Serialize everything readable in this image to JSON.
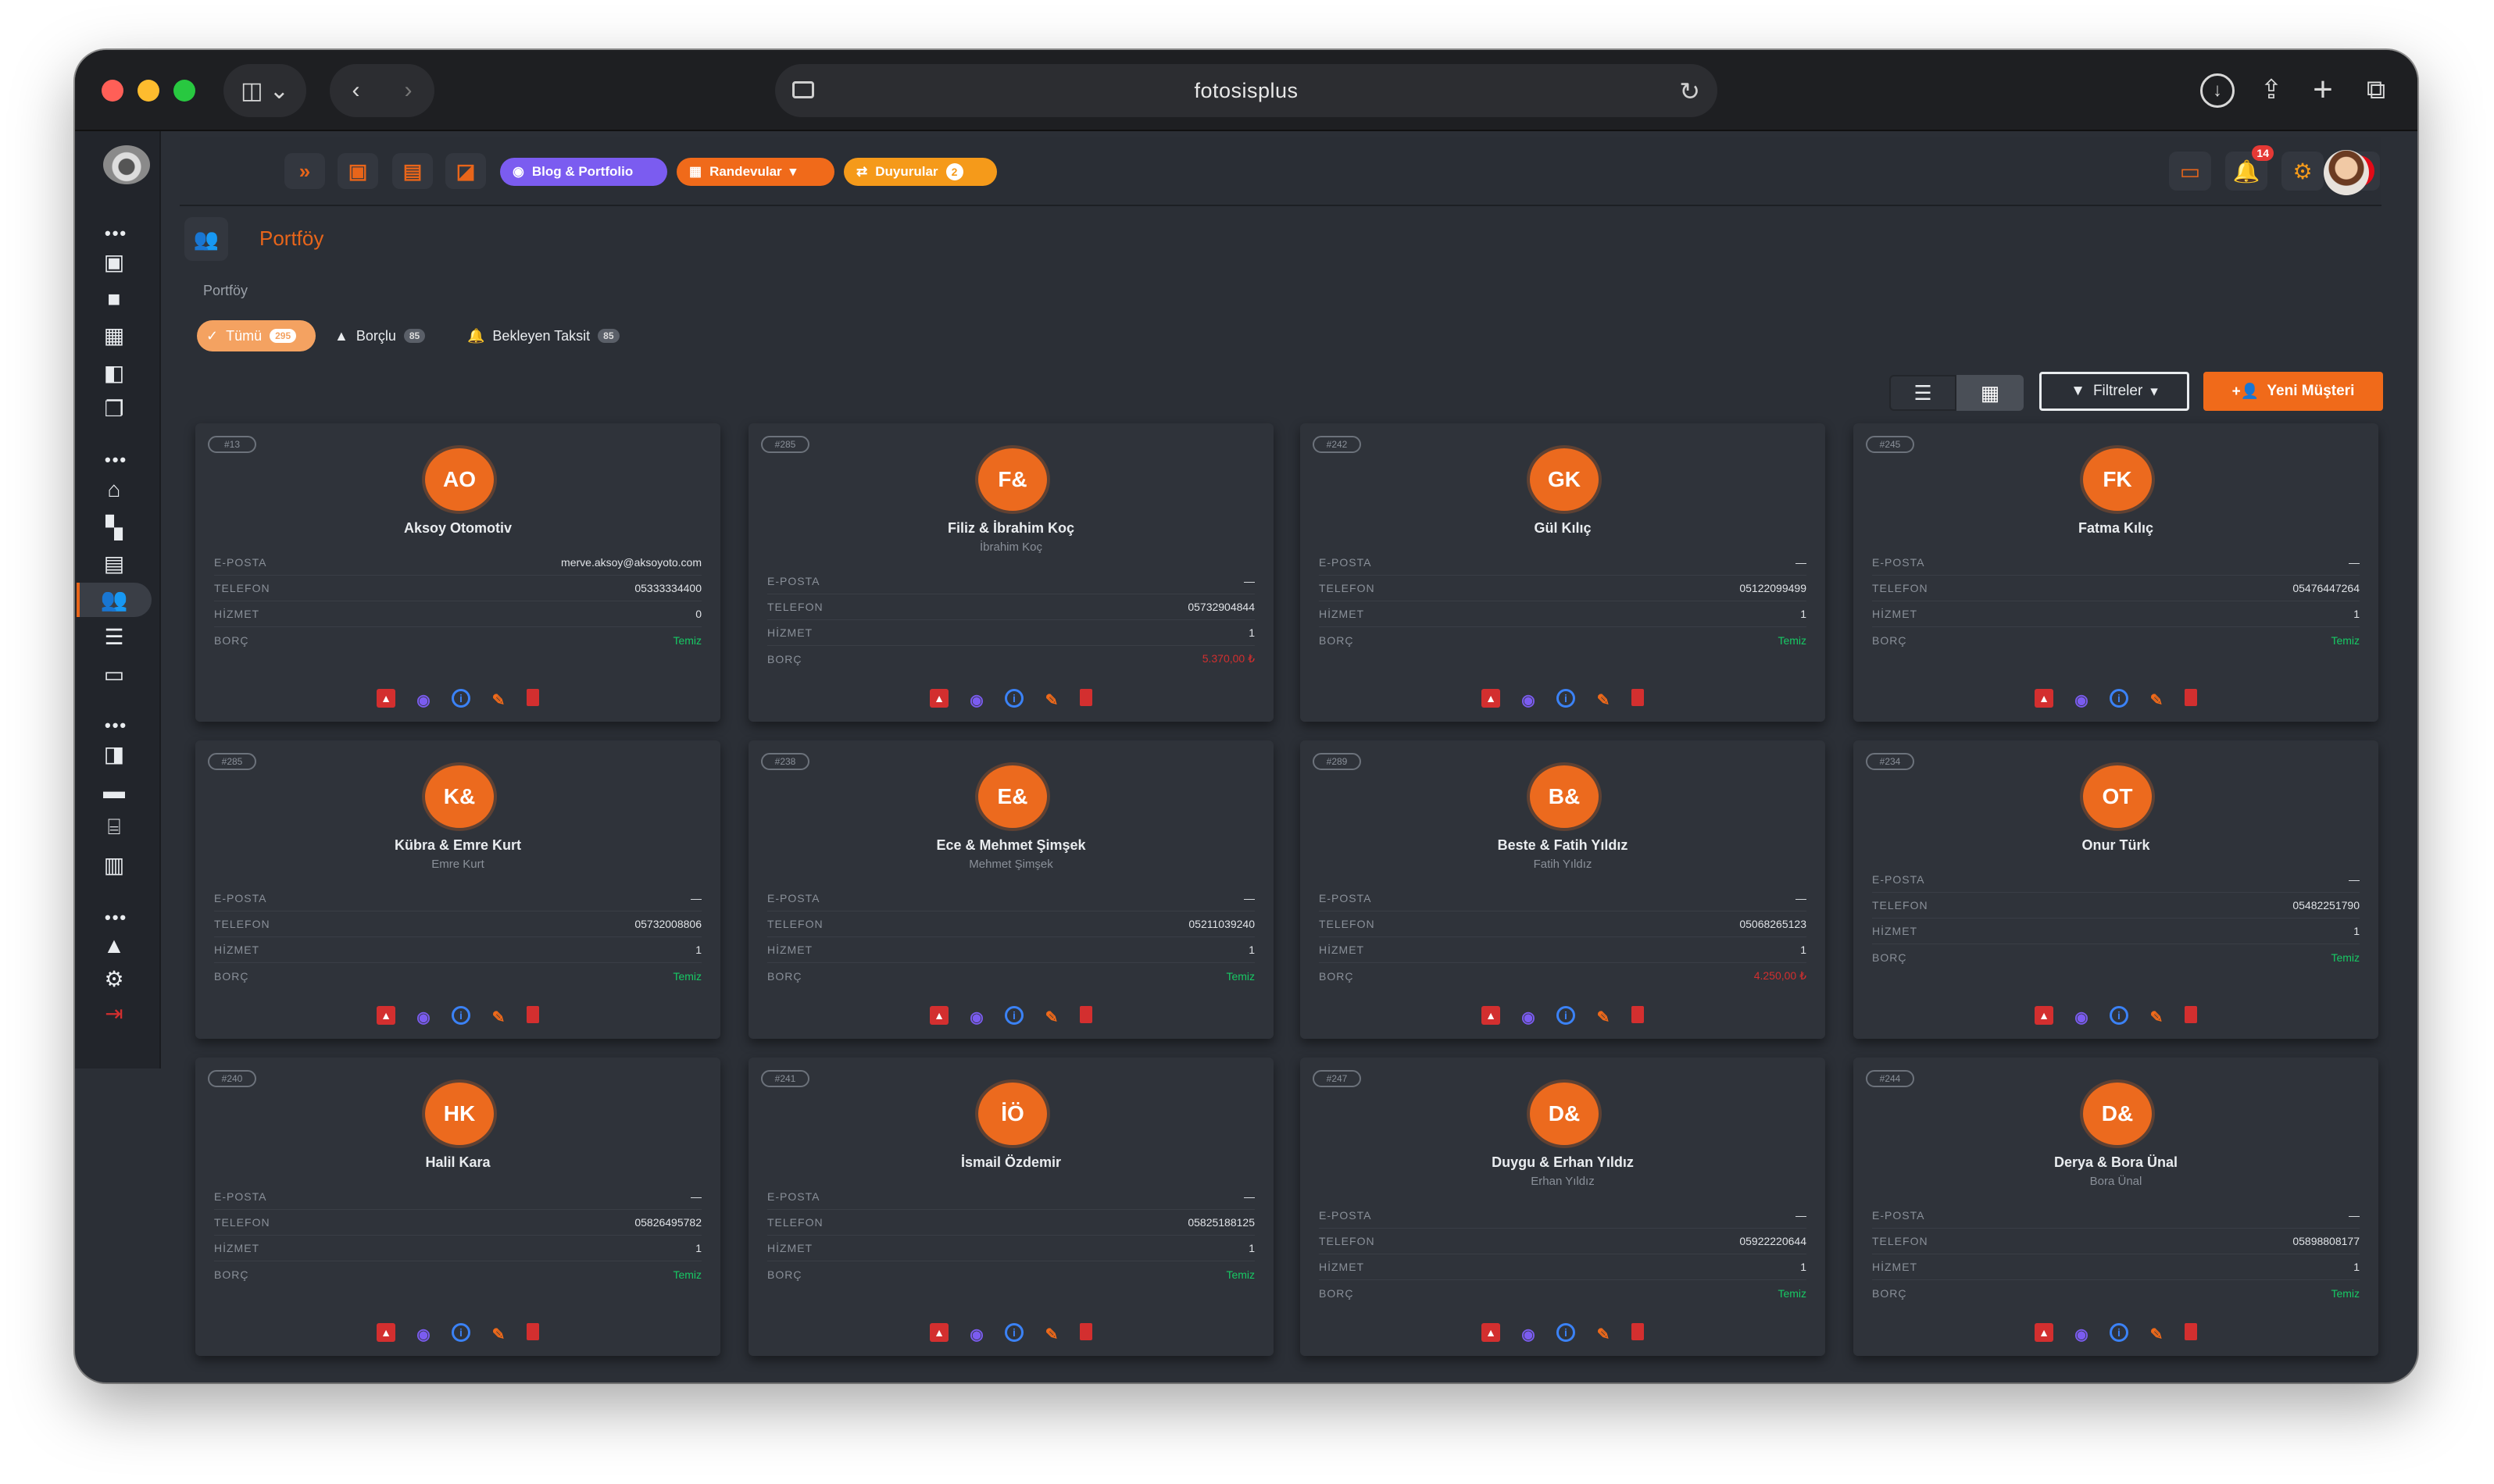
{
  "browser": {
    "url": "fotosisplus"
  },
  "appbar": {
    "blog_label": "Blog & Portfolio",
    "appointments_label": "Randevular",
    "announcements_label": "Duyurular",
    "announcements_count": "2",
    "notification_count": "14",
    "flag": "C*"
  },
  "page": {
    "title": "Portföy",
    "breadcrumb": "Portföy"
  },
  "filters": {
    "all_label": "Tümü",
    "all_count": "295",
    "borclu_label": "Borçlu",
    "borclu_count": "85",
    "bekleyen_label": "Bekleyen Taksit",
    "bekleyen_count": "85",
    "filters_button": "Filtreler",
    "new_customer_button": "Yeni Müşteri"
  },
  "labels": {
    "email": "E-POSTA",
    "phone": "TELEFON",
    "service": "HİZMET",
    "debt": "BORÇ"
  },
  "colors": {
    "accent": "#ec6a1e",
    "ok": "#17c964",
    "danger": "#d32f2f",
    "purple": "#7b5cf0"
  },
  "cards": [
    {
      "id": "#13",
      "initials": "AO",
      "name": "Aksoy Otomotiv",
      "sub": "",
      "email": "merve.aksoy@aksoyoto.com",
      "phone": "05333334400",
      "service": "0",
      "debt": "Temiz"
    },
    {
      "id": "#285",
      "initials": "F&",
      "name": "Filiz & İbrahim Koç",
      "sub": "İbrahim Koç",
      "email": "—",
      "phone": "05732904844",
      "service": "1",
      "debt": "5.370,00 ₺"
    },
    {
      "id": "#242",
      "initials": "GK",
      "name": "Gül Kılıç",
      "sub": "",
      "email": "—",
      "phone": "05122099499",
      "service": "1",
      "debt": "Temiz"
    },
    {
      "id": "#245",
      "initials": "FK",
      "name": "Fatma Kılıç",
      "sub": "",
      "email": "—",
      "phone": "05476447264",
      "service": "1",
      "debt": "Temiz"
    },
    {
      "id": "#285",
      "initials": "K&",
      "name": "Kübra & Emre Kurt",
      "sub": "Emre Kurt",
      "email": "—",
      "phone": "05732008806",
      "service": "1",
      "debt": "Temiz"
    },
    {
      "id": "#238",
      "initials": "E&",
      "name": "Ece & Mehmet Şimşek",
      "sub": "Mehmet Şimşek",
      "email": "—",
      "phone": "05211039240",
      "service": "1",
      "debt": "Temiz"
    },
    {
      "id": "#289",
      "initials": "B&",
      "name": "Beste & Fatih Yıldız",
      "sub": "Fatih Yıldız",
      "email": "—",
      "phone": "05068265123",
      "service": "1",
      "debt": "4.250,00 ₺"
    },
    {
      "id": "#234",
      "initials": "OT",
      "name": "Onur Türk",
      "sub": "",
      "email": "—",
      "phone": "05482251790",
      "service": "1",
      "debt": "Temiz"
    },
    {
      "id": "#240",
      "initials": "HK",
      "name": "Halil Kara",
      "sub": "",
      "email": "—",
      "phone": "05826495782",
      "service": "1",
      "debt": "Temiz"
    },
    {
      "id": "#241",
      "initials": "İÖ",
      "name": "İsmail Özdemir",
      "sub": "",
      "email": "—",
      "phone": "05825188125",
      "service": "1",
      "debt": "Temiz"
    },
    {
      "id": "#247",
      "initials": "D&",
      "name": "Duygu & Erhan Yıldız",
      "sub": "Erhan Yıldız",
      "email": "—",
      "phone": "05922220644",
      "service": "1",
      "debt": "Temiz"
    },
    {
      "id": "#244",
      "initials": "D&",
      "name": "Derya & Bora Ünal",
      "sub": "Bora Ünal",
      "email": "—",
      "phone": "05898808177",
      "service": "1",
      "debt": "Temiz"
    }
  ]
}
